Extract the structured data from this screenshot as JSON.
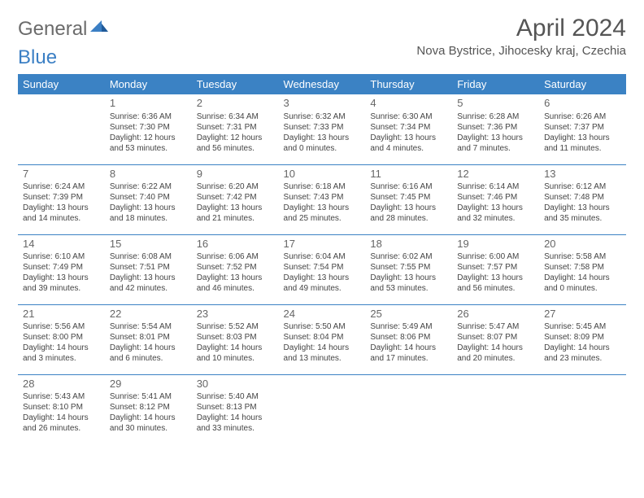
{
  "logo": {
    "gray": "General",
    "blue": "Blue"
  },
  "title": "April 2024",
  "location": "Nova Bystrice, Jihocesky kraj, Czechia",
  "colors": {
    "header_bg": "#3b82c4",
    "header_fg": "#ffffff",
    "body_bg": "#ffffff",
    "text": "#444444",
    "divider": "#3b82c4",
    "logo_gray": "#6b6b6b",
    "logo_blue": "#3b7fc4"
  },
  "dayNames": [
    "Sunday",
    "Monday",
    "Tuesday",
    "Wednesday",
    "Thursday",
    "Friday",
    "Saturday"
  ],
  "weeks": [
    [
      null,
      {
        "n": "1",
        "sr": "6:36 AM",
        "ss": "7:30 PM",
        "dl": "12 hours and 53 minutes."
      },
      {
        "n": "2",
        "sr": "6:34 AM",
        "ss": "7:31 PM",
        "dl": "12 hours and 56 minutes."
      },
      {
        "n": "3",
        "sr": "6:32 AM",
        "ss": "7:33 PM",
        "dl": "13 hours and 0 minutes."
      },
      {
        "n": "4",
        "sr": "6:30 AM",
        "ss": "7:34 PM",
        "dl": "13 hours and 4 minutes."
      },
      {
        "n": "5",
        "sr": "6:28 AM",
        "ss": "7:36 PM",
        "dl": "13 hours and 7 minutes."
      },
      {
        "n": "6",
        "sr": "6:26 AM",
        "ss": "7:37 PM",
        "dl": "13 hours and 11 minutes."
      }
    ],
    [
      {
        "n": "7",
        "sr": "6:24 AM",
        "ss": "7:39 PM",
        "dl": "13 hours and 14 minutes."
      },
      {
        "n": "8",
        "sr": "6:22 AM",
        "ss": "7:40 PM",
        "dl": "13 hours and 18 minutes."
      },
      {
        "n": "9",
        "sr": "6:20 AM",
        "ss": "7:42 PM",
        "dl": "13 hours and 21 minutes."
      },
      {
        "n": "10",
        "sr": "6:18 AM",
        "ss": "7:43 PM",
        "dl": "13 hours and 25 minutes."
      },
      {
        "n": "11",
        "sr": "6:16 AM",
        "ss": "7:45 PM",
        "dl": "13 hours and 28 minutes."
      },
      {
        "n": "12",
        "sr": "6:14 AM",
        "ss": "7:46 PM",
        "dl": "13 hours and 32 minutes."
      },
      {
        "n": "13",
        "sr": "6:12 AM",
        "ss": "7:48 PM",
        "dl": "13 hours and 35 minutes."
      }
    ],
    [
      {
        "n": "14",
        "sr": "6:10 AM",
        "ss": "7:49 PM",
        "dl": "13 hours and 39 minutes."
      },
      {
        "n": "15",
        "sr": "6:08 AM",
        "ss": "7:51 PM",
        "dl": "13 hours and 42 minutes."
      },
      {
        "n": "16",
        "sr": "6:06 AM",
        "ss": "7:52 PM",
        "dl": "13 hours and 46 minutes."
      },
      {
        "n": "17",
        "sr": "6:04 AM",
        "ss": "7:54 PM",
        "dl": "13 hours and 49 minutes."
      },
      {
        "n": "18",
        "sr": "6:02 AM",
        "ss": "7:55 PM",
        "dl": "13 hours and 53 minutes."
      },
      {
        "n": "19",
        "sr": "6:00 AM",
        "ss": "7:57 PM",
        "dl": "13 hours and 56 minutes."
      },
      {
        "n": "20",
        "sr": "5:58 AM",
        "ss": "7:58 PM",
        "dl": "14 hours and 0 minutes."
      }
    ],
    [
      {
        "n": "21",
        "sr": "5:56 AM",
        "ss": "8:00 PM",
        "dl": "14 hours and 3 minutes."
      },
      {
        "n": "22",
        "sr": "5:54 AM",
        "ss": "8:01 PM",
        "dl": "14 hours and 6 minutes."
      },
      {
        "n": "23",
        "sr": "5:52 AM",
        "ss": "8:03 PM",
        "dl": "14 hours and 10 minutes."
      },
      {
        "n": "24",
        "sr": "5:50 AM",
        "ss": "8:04 PM",
        "dl": "14 hours and 13 minutes."
      },
      {
        "n": "25",
        "sr": "5:49 AM",
        "ss": "8:06 PM",
        "dl": "14 hours and 17 minutes."
      },
      {
        "n": "26",
        "sr": "5:47 AM",
        "ss": "8:07 PM",
        "dl": "14 hours and 20 minutes."
      },
      {
        "n": "27",
        "sr": "5:45 AM",
        "ss": "8:09 PM",
        "dl": "14 hours and 23 minutes."
      }
    ],
    [
      {
        "n": "28",
        "sr": "5:43 AM",
        "ss": "8:10 PM",
        "dl": "14 hours and 26 minutes."
      },
      {
        "n": "29",
        "sr": "5:41 AM",
        "ss": "8:12 PM",
        "dl": "14 hours and 30 minutes."
      },
      {
        "n": "30",
        "sr": "5:40 AM",
        "ss": "8:13 PM",
        "dl": "14 hours and 33 minutes."
      },
      null,
      null,
      null,
      null
    ]
  ],
  "labels": {
    "sunrise": "Sunrise:",
    "sunset": "Sunset:",
    "daylight": "Daylight:"
  }
}
